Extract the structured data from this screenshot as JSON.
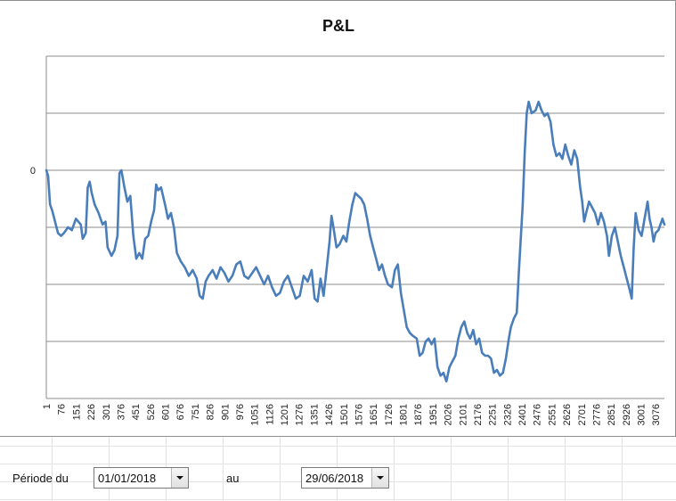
{
  "chart_data": {
    "type": "line",
    "title": "P&L",
    "xlabel": "",
    "ylabel": "",
    "x_first": 1,
    "x_step": 1,
    "x_count": 3120,
    "x_tick_labels": [
      "1",
      "76",
      "151",
      "226",
      "301",
      "376",
      "451",
      "526",
      "601",
      "676",
      "751",
      "826",
      "901",
      "976",
      "1051",
      "1126",
      "1201",
      "1276",
      "1351",
      "1426",
      "1501",
      "1576",
      "1651",
      "1726",
      "1801",
      "1876",
      "1951",
      "2026",
      "2101",
      "2176",
      "2251",
      "2326",
      "2401",
      "2476",
      "2551",
      "2626",
      "2701",
      "2776",
      "2851",
      "2926",
      "3001",
      "3076"
    ],
    "y_tick_labels": [
      {
        "value": 0,
        "label": "0"
      }
    ],
    "ylim": [
      -4,
      2
    ],
    "grid": true,
    "legend": "none",
    "color": "#4a7ebb",
    "series": [
      {
        "points": [
          [
            1,
            0.0
          ],
          [
            10,
            -0.1
          ],
          [
            20,
            -0.6
          ],
          [
            30,
            -0.7
          ],
          [
            45,
            -0.9
          ],
          [
            60,
            -1.1
          ],
          [
            75,
            -1.15
          ],
          [
            90,
            -1.1
          ],
          [
            110,
            -1.0
          ],
          [
            130,
            -1.05
          ],
          [
            150,
            -0.85
          ],
          [
            175,
            -0.95
          ],
          [
            185,
            -1.2
          ],
          [
            200,
            -1.1
          ],
          [
            210,
            -0.3
          ],
          [
            220,
            -0.2
          ],
          [
            230,
            -0.4
          ],
          [
            245,
            -0.6
          ],
          [
            265,
            -0.75
          ],
          [
            285,
            -0.95
          ],
          [
            300,
            -0.9
          ],
          [
            310,
            -1.35
          ],
          [
            330,
            -1.5
          ],
          [
            345,
            -1.4
          ],
          [
            360,
            -1.15
          ],
          [
            370,
            -0.05
          ],
          [
            380,
            0.0
          ],
          [
            395,
            -0.3
          ],
          [
            410,
            -0.55
          ],
          [
            425,
            -0.45
          ],
          [
            440,
            -1.15
          ],
          [
            455,
            -1.55
          ],
          [
            470,
            -1.45
          ],
          [
            485,
            -1.55
          ],
          [
            500,
            -1.2
          ],
          [
            515,
            -1.15
          ],
          [
            530,
            -0.9
          ],
          [
            545,
            -0.7
          ],
          [
            555,
            -0.25
          ],
          [
            565,
            -0.35
          ],
          [
            580,
            -0.3
          ],
          [
            600,
            -0.6
          ],
          [
            615,
            -0.85
          ],
          [
            630,
            -0.75
          ],
          [
            645,
            -1.0
          ],
          [
            660,
            -1.45
          ],
          [
            680,
            -1.6
          ],
          [
            700,
            -1.7
          ],
          [
            720,
            -1.85
          ],
          [
            740,
            -1.75
          ],
          [
            760,
            -1.9
          ],
          [
            775,
            -2.2
          ],
          [
            790,
            -2.25
          ],
          [
            805,
            -1.95
          ],
          [
            820,
            -1.85
          ],
          [
            840,
            -1.75
          ],
          [
            860,
            -1.9
          ],
          [
            880,
            -1.7
          ],
          [
            900,
            -1.8
          ],
          [
            920,
            -1.95
          ],
          [
            940,
            -1.85
          ],
          [
            960,
            -1.65
          ],
          [
            980,
            -1.6
          ],
          [
            1000,
            -1.85
          ],
          [
            1020,
            -1.9
          ],
          [
            1040,
            -1.8
          ],
          [
            1060,
            -1.7
          ],
          [
            1080,
            -1.85
          ],
          [
            1100,
            -2.0
          ],
          [
            1120,
            -1.85
          ],
          [
            1140,
            -2.05
          ],
          [
            1160,
            -2.2
          ],
          [
            1180,
            -2.15
          ],
          [
            1200,
            -1.95
          ],
          [
            1220,
            -1.85
          ],
          [
            1240,
            -2.05
          ],
          [
            1260,
            -2.25
          ],
          [
            1280,
            -2.2
          ],
          [
            1300,
            -1.85
          ],
          [
            1320,
            -1.95
          ],
          [
            1340,
            -1.75
          ],
          [
            1355,
            -2.25
          ],
          [
            1370,
            -2.3
          ],
          [
            1385,
            -1.9
          ],
          [
            1400,
            -2.2
          ],
          [
            1415,
            -1.75
          ],
          [
            1430,
            -1.25
          ],
          [
            1440,
            -0.8
          ],
          [
            1450,
            -1.0
          ],
          [
            1465,
            -1.35
          ],
          [
            1480,
            -1.3
          ],
          [
            1500,
            -1.15
          ],
          [
            1515,
            -1.25
          ],
          [
            1530,
            -0.9
          ],
          [
            1545,
            -0.6
          ],
          [
            1560,
            -0.4
          ],
          [
            1575,
            -0.45
          ],
          [
            1590,
            -0.5
          ],
          [
            1605,
            -0.6
          ],
          [
            1620,
            -0.85
          ],
          [
            1635,
            -1.15
          ],
          [
            1650,
            -1.35
          ],
          [
            1665,
            -1.55
          ],
          [
            1680,
            -1.75
          ],
          [
            1695,
            -1.65
          ],
          [
            1710,
            -1.85
          ],
          [
            1725,
            -2.0
          ],
          [
            1745,
            -2.05
          ],
          [
            1760,
            -1.75
          ],
          [
            1775,
            -1.65
          ],
          [
            1790,
            -2.15
          ],
          [
            1805,
            -2.45
          ],
          [
            1820,
            -2.75
          ],
          [
            1835,
            -2.85
          ],
          [
            1850,
            -2.9
          ],
          [
            1870,
            -2.95
          ],
          [
            1885,
            -3.25
          ],
          [
            1900,
            -3.2
          ],
          [
            1915,
            -3.0
          ],
          [
            1930,
            -2.95
          ],
          [
            1945,
            -3.05
          ],
          [
            1960,
            -2.95
          ],
          [
            1975,
            -3.45
          ],
          [
            1990,
            -3.6
          ],
          [
            2005,
            -3.55
          ],
          [
            2020,
            -3.7
          ],
          [
            2035,
            -3.45
          ],
          [
            2050,
            -3.35
          ],
          [
            2065,
            -3.25
          ],
          [
            2080,
            -2.95
          ],
          [
            2095,
            -2.75
          ],
          [
            2110,
            -2.65
          ],
          [
            2125,
            -2.85
          ],
          [
            2140,
            -2.95
          ],
          [
            2155,
            -2.8
          ],
          [
            2170,
            -3.05
          ],
          [
            2185,
            -2.95
          ],
          [
            2200,
            -3.2
          ],
          [
            2215,
            -3.25
          ],
          [
            2230,
            -3.25
          ],
          [
            2245,
            -3.3
          ],
          [
            2260,
            -3.55
          ],
          [
            2275,
            -3.5
          ],
          [
            2290,
            -3.6
          ],
          [
            2305,
            -3.55
          ],
          [
            2320,
            -3.3
          ],
          [
            2335,
            -2.95
          ],
          [
            2345,
            -2.75
          ],
          [
            2360,
            -2.6
          ],
          [
            2375,
            -2.5
          ],
          [
            2385,
            -1.8
          ],
          [
            2395,
            -1.2
          ],
          [
            2405,
            -0.6
          ],
          [
            2415,
            0.3
          ],
          [
            2425,
            1.0
          ],
          [
            2435,
            1.2
          ],
          [
            2450,
            1.0
          ],
          [
            2470,
            1.05
          ],
          [
            2485,
            1.2
          ],
          [
            2500,
            1.05
          ],
          [
            2515,
            0.95
          ],
          [
            2530,
            1.0
          ],
          [
            2545,
            0.85
          ],
          [
            2560,
            0.45
          ],
          [
            2575,
            0.25
          ],
          [
            2590,
            0.3
          ],
          [
            2605,
            0.2
          ],
          [
            2620,
            0.45
          ],
          [
            2635,
            0.25
          ],
          [
            2650,
            0.1
          ],
          [
            2665,
            0.35
          ],
          [
            2680,
            0.2
          ],
          [
            2695,
            -0.3
          ],
          [
            2705,
            -0.55
          ],
          [
            2715,
            -0.9
          ],
          [
            2725,
            -0.75
          ],
          [
            2740,
            -0.55
          ],
          [
            2755,
            -0.65
          ],
          [
            2770,
            -0.75
          ],
          [
            2785,
            -0.95
          ],
          [
            2800,
            -0.75
          ],
          [
            2815,
            -0.9
          ],
          [
            2830,
            -1.15
          ],
          [
            2840,
            -1.5
          ],
          [
            2855,
            -1.15
          ],
          [
            2870,
            -1.0
          ],
          [
            2885,
            -1.25
          ],
          [
            2900,
            -1.5
          ],
          [
            2915,
            -1.7
          ],
          [
            2930,
            -1.9
          ],
          [
            2945,
            -2.1
          ],
          [
            2955,
            -2.25
          ],
          [
            2965,
            -1.35
          ],
          [
            2975,
            -0.75
          ],
          [
            2990,
            -1.05
          ],
          [
            3005,
            -1.15
          ],
          [
            3020,
            -0.85
          ],
          [
            3035,
            -0.55
          ],
          [
            3045,
            -0.85
          ],
          [
            3055,
            -1.0
          ],
          [
            3065,
            -1.25
          ],
          [
            3075,
            -1.1
          ],
          [
            3090,
            -1.05
          ],
          [
            3100,
            -0.95
          ],
          [
            3110,
            -0.85
          ],
          [
            3120,
            -0.95
          ]
        ]
      }
    ]
  },
  "period": {
    "from_label": "Période du",
    "from_value": "01/01/2018",
    "to_label": "au",
    "to_value": "29/06/2018"
  }
}
